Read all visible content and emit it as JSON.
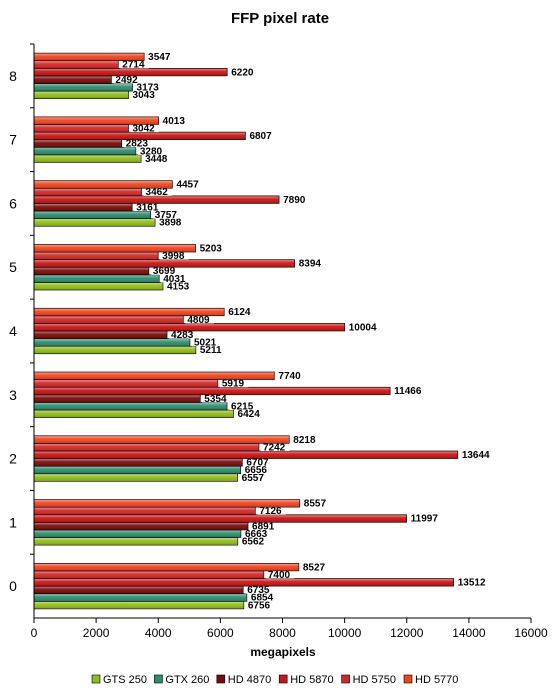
{
  "chart_data": {
    "type": "bar",
    "orientation": "horizontal",
    "title": "FFP pixel rate",
    "xlabel": "megapixels",
    "ylabel": "",
    "xlim": [
      0,
      16000
    ],
    "xticks": [
      0,
      2000,
      4000,
      6000,
      8000,
      10000,
      12000,
      14000,
      16000
    ],
    "grid": false,
    "legend_position": "bottom",
    "categories": [
      "0",
      "1",
      "2",
      "3",
      "4",
      "5",
      "6",
      "7",
      "8"
    ],
    "series": [
      {
        "name": "GTS 250",
        "color": "#8fbc1a",
        "values": [
          6756,
          6562,
          6557,
          6424,
          5211,
          4153,
          3898,
          3448,
          3043
        ]
      },
      {
        "name": "GTX 260",
        "color": "#2e8b6e",
        "values": [
          6854,
          6663,
          6656,
          6215,
          5021,
          4031,
          3757,
          3280,
          3173
        ]
      },
      {
        "name": "HD 4870",
        "color": "#7a0a0a",
        "values": [
          6735,
          6891,
          6707,
          5354,
          4283,
          3699,
          3161,
          2823,
          2492
        ]
      },
      {
        "name": "HD 5870",
        "color": "#c81414",
        "values": [
          13512,
          11997,
          13644,
          11466,
          10004,
          8394,
          7890,
          6807,
          6220
        ]
      },
      {
        "name": "HD 5750",
        "color": "#d22828",
        "values": [
          7400,
          7126,
          7242,
          5919,
          4809,
          3998,
          3462,
          3042,
          2714
        ]
      },
      {
        "name": "HD 5770",
        "color": "#ee4420",
        "values": [
          8527,
          8557,
          8218,
          7740,
          6124,
          5203,
          4457,
          4013,
          3547
        ]
      }
    ]
  }
}
